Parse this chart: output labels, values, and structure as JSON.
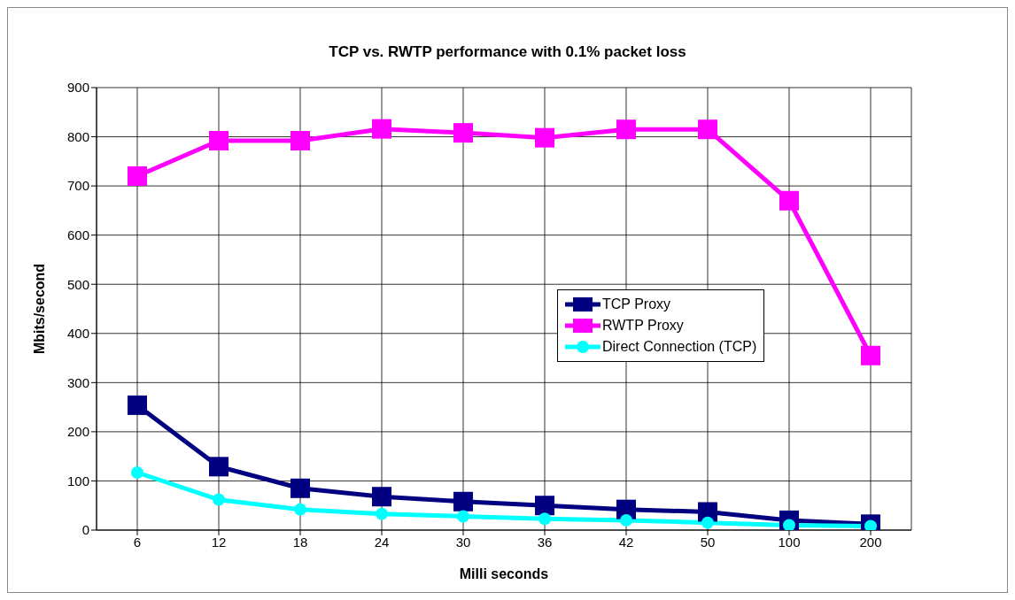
{
  "chart_data": {
    "type": "line",
    "title": "TCP vs. RWTP performance with 0.1% packet loss",
    "xlabel": "Milli seconds",
    "ylabel": "Mbits/second",
    "categories": [
      "6",
      "12",
      "18",
      "24",
      "30",
      "36",
      "42",
      "50",
      "100",
      "200"
    ],
    "series": [
      {
        "name": "TCP Proxy",
        "color": "#000080",
        "marker": "square",
        "values": [
          254,
          129,
          85,
          68,
          58,
          50,
          42,
          37,
          20,
          12
        ]
      },
      {
        "name": "RWTP Proxy",
        "color": "#ff00ff",
        "marker": "square",
        "values": [
          720,
          792,
          792,
          816,
          808,
          798,
          815,
          815,
          670,
          355
        ]
      },
      {
        "name": "Direct Connection (TCP)",
        "color": "#00ffff",
        "marker": "circle",
        "values": [
          117,
          62,
          42,
          33,
          28,
          23,
          20,
          15,
          10,
          8
        ]
      }
    ],
    "ylim": [
      0,
      900
    ],
    "yticks": [
      0,
      100,
      200,
      300,
      400,
      500,
      600,
      700,
      800,
      900
    ],
    "grid": true,
    "legend": "right",
    "line_style": "solid"
  }
}
